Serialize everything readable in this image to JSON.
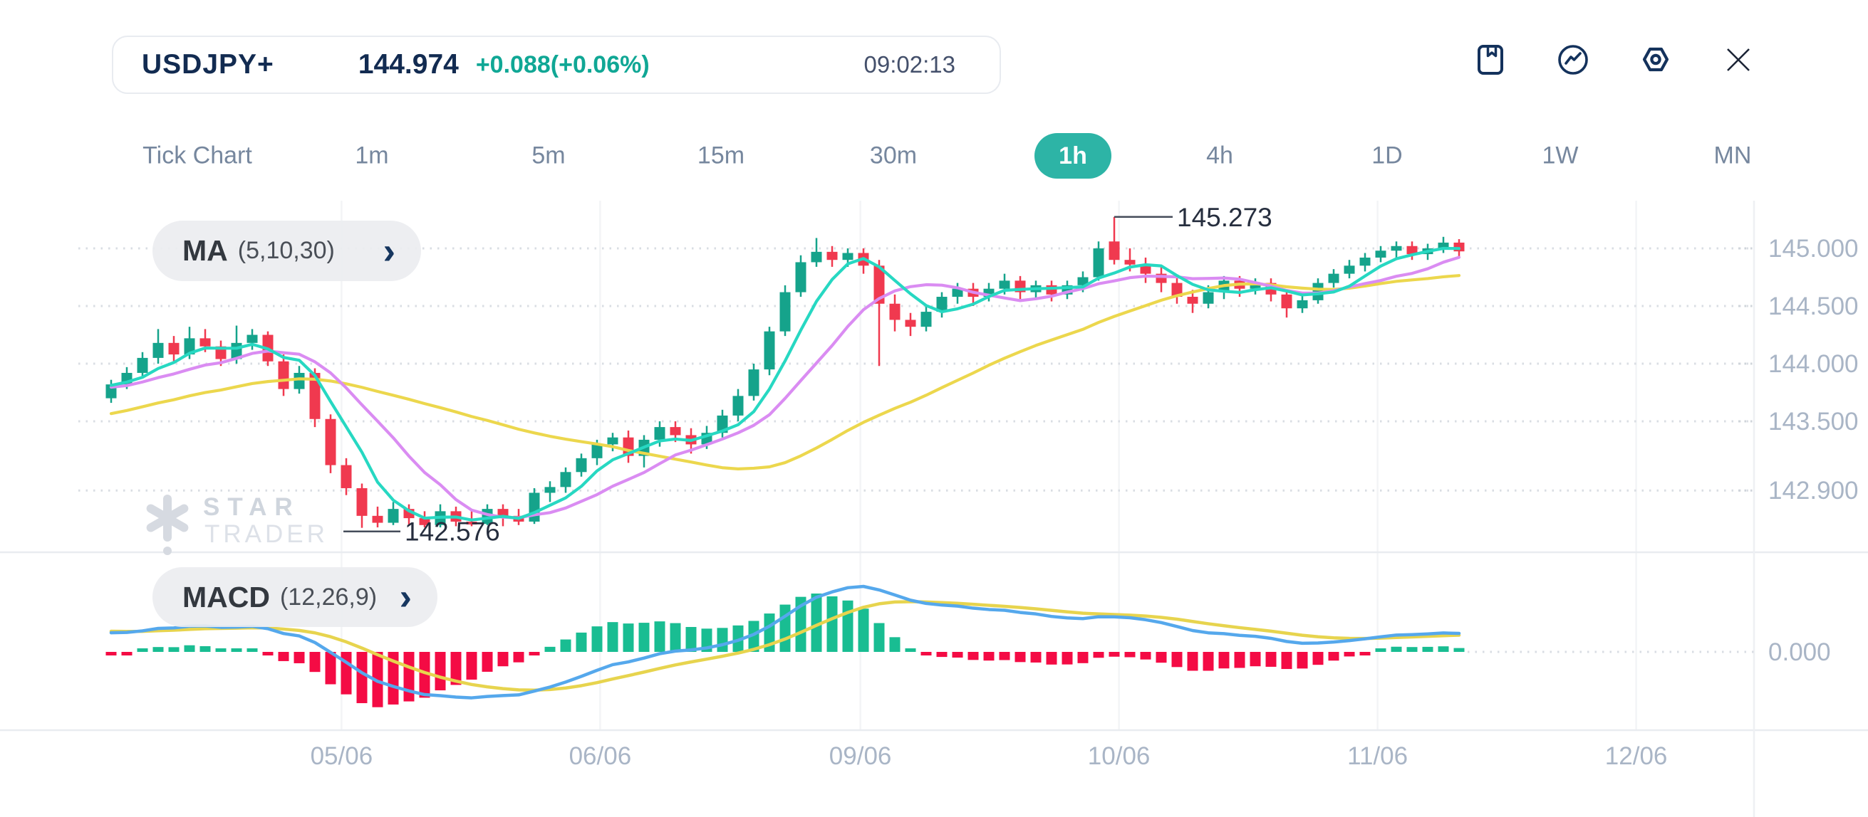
{
  "header": {
    "symbol": "USDJPY+",
    "price": "144.974",
    "change": "+0.088(+0.06%)",
    "time": "09:02:13"
  },
  "toolbar": {
    "icons": [
      "journal-bookmark",
      "trend-circle",
      "settings-hexagon",
      "close"
    ]
  },
  "timeframes": {
    "selected": "1h",
    "items": [
      {
        "label": "Tick Chart"
      },
      {
        "label": "1m"
      },
      {
        "label": "5m"
      },
      {
        "label": "15m"
      },
      {
        "label": "30m"
      },
      {
        "label": "1h"
      },
      {
        "label": "4h"
      },
      {
        "label": "1D"
      },
      {
        "label": "1W"
      },
      {
        "label": "MN"
      }
    ]
  },
  "indicators": {
    "ma": {
      "label": "MA",
      "params": "(5,10,30)"
    },
    "macd": {
      "label": "MACD",
      "params": "(12,26,9)"
    }
  },
  "watermark": {
    "line1": "STAR",
    "line2": "TRADER"
  },
  "chart_data": {
    "type": "candlestick+macd",
    "title": "USDJPY+ 1h",
    "price_axis": {
      "labels": [
        "145.000",
        "144.500",
        "144.000",
        "143.500",
        "142.900"
      ],
      "values": [
        145.0,
        144.5,
        144.0,
        143.5,
        142.9
      ]
    },
    "time_axis": {
      "ticks": [
        {
          "label": "05/06",
          "bar": 14.7
        },
        {
          "label": "06/06",
          "bar": 31.2
        },
        {
          "label": "09/06",
          "bar": 47.8
        },
        {
          "label": "10/06",
          "bar": 64.3
        },
        {
          "label": "11/06",
          "bar": 80.8
        },
        {
          "label": "12/06",
          "bar": 97.3
        }
      ]
    },
    "annotations": {
      "high": {
        "value": "145.273",
        "bar": 64,
        "price": 145.273
      },
      "low": {
        "value": "142.576",
        "bar": 16,
        "price": 142.576
      }
    },
    "macd_zero_label": "0.000",
    "ma_periods": [
      5,
      10,
      30
    ],
    "macd_params": [
      12,
      26,
      9
    ],
    "colors": {
      "up": "#15a38b",
      "down": "#f0394f",
      "ma5": "#27d8c2",
      "ma10": "#da8cf2",
      "ma30": "#ecd74d",
      "macd_line": "#55a8ec",
      "signal_line": "#e7d44e",
      "hist_up": "#19bd92",
      "hist_down": "#f40b44",
      "grid_dotted": "#d9dde3",
      "grid_vertical": "#f3f4f6",
      "axis_text": "#a9b5c6",
      "annotation_text": "#262e3e"
    },
    "warmup_closes": [
      143.05,
      143.12,
      143.08,
      143.18,
      143.25,
      143.2,
      143.3,
      143.38,
      143.32,
      143.42,
      143.5,
      143.45,
      143.55,
      143.62,
      143.58,
      143.65,
      143.6,
      143.68,
      143.75,
      143.7,
      143.72,
      143.78,
      143.74,
      143.8,
      143.76,
      143.82,
      143.78,
      143.84,
      143.8,
      143.82
    ],
    "candles": [
      [
        143.7,
        143.86,
        143.66,
        143.82
      ],
      [
        143.82,
        143.97,
        143.78,
        143.92
      ],
      [
        143.92,
        144.1,
        143.88,
        144.05
      ],
      [
        144.05,
        144.3,
        144.0,
        144.18
      ],
      [
        144.18,
        144.24,
        144.02,
        144.08
      ],
      [
        144.08,
        144.32,
        144.04,
        144.22
      ],
      [
        144.22,
        144.3,
        144.1,
        144.15
      ],
      [
        144.15,
        144.2,
        143.98,
        144.04
      ],
      [
        144.04,
        144.33,
        144.0,
        144.18
      ],
      [
        144.18,
        144.3,
        144.12,
        144.25
      ],
      [
        144.25,
        144.28,
        143.98,
        144.02
      ],
      [
        144.02,
        144.08,
        143.72,
        143.78
      ],
      [
        143.78,
        143.98,
        143.74,
        143.92
      ],
      [
        143.92,
        143.96,
        143.45,
        143.52
      ],
      [
        143.52,
        143.56,
        143.05,
        143.12
      ],
      [
        143.12,
        143.18,
        142.86,
        142.92
      ],
      [
        142.92,
        142.96,
        142.576,
        142.68
      ],
      [
        142.68,
        142.76,
        142.58,
        142.62
      ],
      [
        142.62,
        142.8,
        142.6,
        142.74
      ],
      [
        142.74,
        142.78,
        142.6,
        142.66
      ],
      [
        142.66,
        142.72,
        142.58,
        142.6
      ],
      [
        142.6,
        142.78,
        142.58,
        142.72
      ],
      [
        142.72,
        142.76,
        142.59,
        142.63
      ],
      [
        142.63,
        142.72,
        142.59,
        142.61
      ],
      [
        142.61,
        142.78,
        142.6,
        142.74
      ],
      [
        142.74,
        142.78,
        142.59,
        142.68
      ],
      [
        142.68,
        142.74,
        142.6,
        142.63
      ],
      [
        142.63,
        142.92,
        142.61,
        142.88
      ],
      [
        142.88,
        142.98,
        142.8,
        142.93
      ],
      [
        142.93,
        143.1,
        142.88,
        143.06
      ],
      [
        143.06,
        143.22,
        143.02,
        143.18
      ],
      [
        143.18,
        143.34,
        143.12,
        143.3
      ],
      [
        143.3,
        143.4,
        143.24,
        143.36
      ],
      [
        143.36,
        143.42,
        143.14,
        143.2
      ],
      [
        143.2,
        143.38,
        143.1,
        143.34
      ],
      [
        143.34,
        143.5,
        143.28,
        143.45
      ],
      [
        143.45,
        143.5,
        143.32,
        143.38
      ],
      [
        143.38,
        143.44,
        143.22,
        143.3
      ],
      [
        143.3,
        143.46,
        143.26,
        143.4
      ],
      [
        143.4,
        143.6,
        143.36,
        143.55
      ],
      [
        143.55,
        143.78,
        143.5,
        143.72
      ],
      [
        143.72,
        144.0,
        143.68,
        143.95
      ],
      [
        143.95,
        144.32,
        143.9,
        144.28
      ],
      [
        144.28,
        144.68,
        144.24,
        144.62
      ],
      [
        144.62,
        144.94,
        144.58,
        144.88
      ],
      [
        144.88,
        145.09,
        144.84,
        144.97
      ],
      [
        144.97,
        145.02,
        144.84,
        144.9
      ],
      [
        144.9,
        145.0,
        144.84,
        144.96
      ],
      [
        144.96,
        145.0,
        144.78,
        144.85
      ],
      [
        144.85,
        144.9,
        143.98,
        144.52
      ],
      [
        144.52,
        144.6,
        144.28,
        144.38
      ],
      [
        144.38,
        144.44,
        144.24,
        144.32
      ],
      [
        144.32,
        144.5,
        144.28,
        144.45
      ],
      [
        144.45,
        144.62,
        144.4,
        144.58
      ],
      [
        144.58,
        144.7,
        144.52,
        144.65
      ],
      [
        144.65,
        144.7,
        144.5,
        144.58
      ],
      [
        144.58,
        144.7,
        144.54,
        144.65
      ],
      [
        144.65,
        144.78,
        144.6,
        144.72
      ],
      [
        144.72,
        144.76,
        144.56,
        144.62
      ],
      [
        144.62,
        144.72,
        144.56,
        144.68
      ],
      [
        144.68,
        144.72,
        144.54,
        144.6
      ],
      [
        144.6,
        144.72,
        144.56,
        144.68
      ],
      [
        144.68,
        144.8,
        144.62,
        144.75
      ],
      [
        144.75,
        145.06,
        144.72,
        145.0
      ],
      [
        145.06,
        145.273,
        144.86,
        144.9
      ],
      [
        144.9,
        145.0,
        144.8,
        144.86
      ],
      [
        144.86,
        144.92,
        144.7,
        144.78
      ],
      [
        144.78,
        144.84,
        144.62,
        144.7
      ],
      [
        144.7,
        144.76,
        144.52,
        144.58
      ],
      [
        144.58,
        144.64,
        144.44,
        144.52
      ],
      [
        144.52,
        144.68,
        144.48,
        144.62
      ],
      [
        144.62,
        144.76,
        144.56,
        144.72
      ],
      [
        144.72,
        144.76,
        144.58,
        144.65
      ],
      [
        144.65,
        144.74,
        144.6,
        144.7
      ],
      [
        144.7,
        144.74,
        144.54,
        144.6
      ],
      [
        144.6,
        144.64,
        144.4,
        144.48
      ],
      [
        144.48,
        144.6,
        144.44,
        144.55
      ],
      [
        144.55,
        144.74,
        144.52,
        144.7
      ],
      [
        144.7,
        144.82,
        144.66,
        144.78
      ],
      [
        144.78,
        144.9,
        144.74,
        144.85
      ],
      [
        144.85,
        144.96,
        144.8,
        144.92
      ],
      [
        144.92,
        145.02,
        144.88,
        144.98
      ],
      [
        144.98,
        145.06,
        144.92,
        145.02
      ],
      [
        145.02,
        145.06,
        144.9,
        144.95
      ],
      [
        144.95,
        145.04,
        144.9,
        145.0
      ],
      [
        145.0,
        145.1,
        144.96,
        145.05
      ],
      [
        145.05,
        145.08,
        144.93,
        144.974
      ]
    ]
  }
}
